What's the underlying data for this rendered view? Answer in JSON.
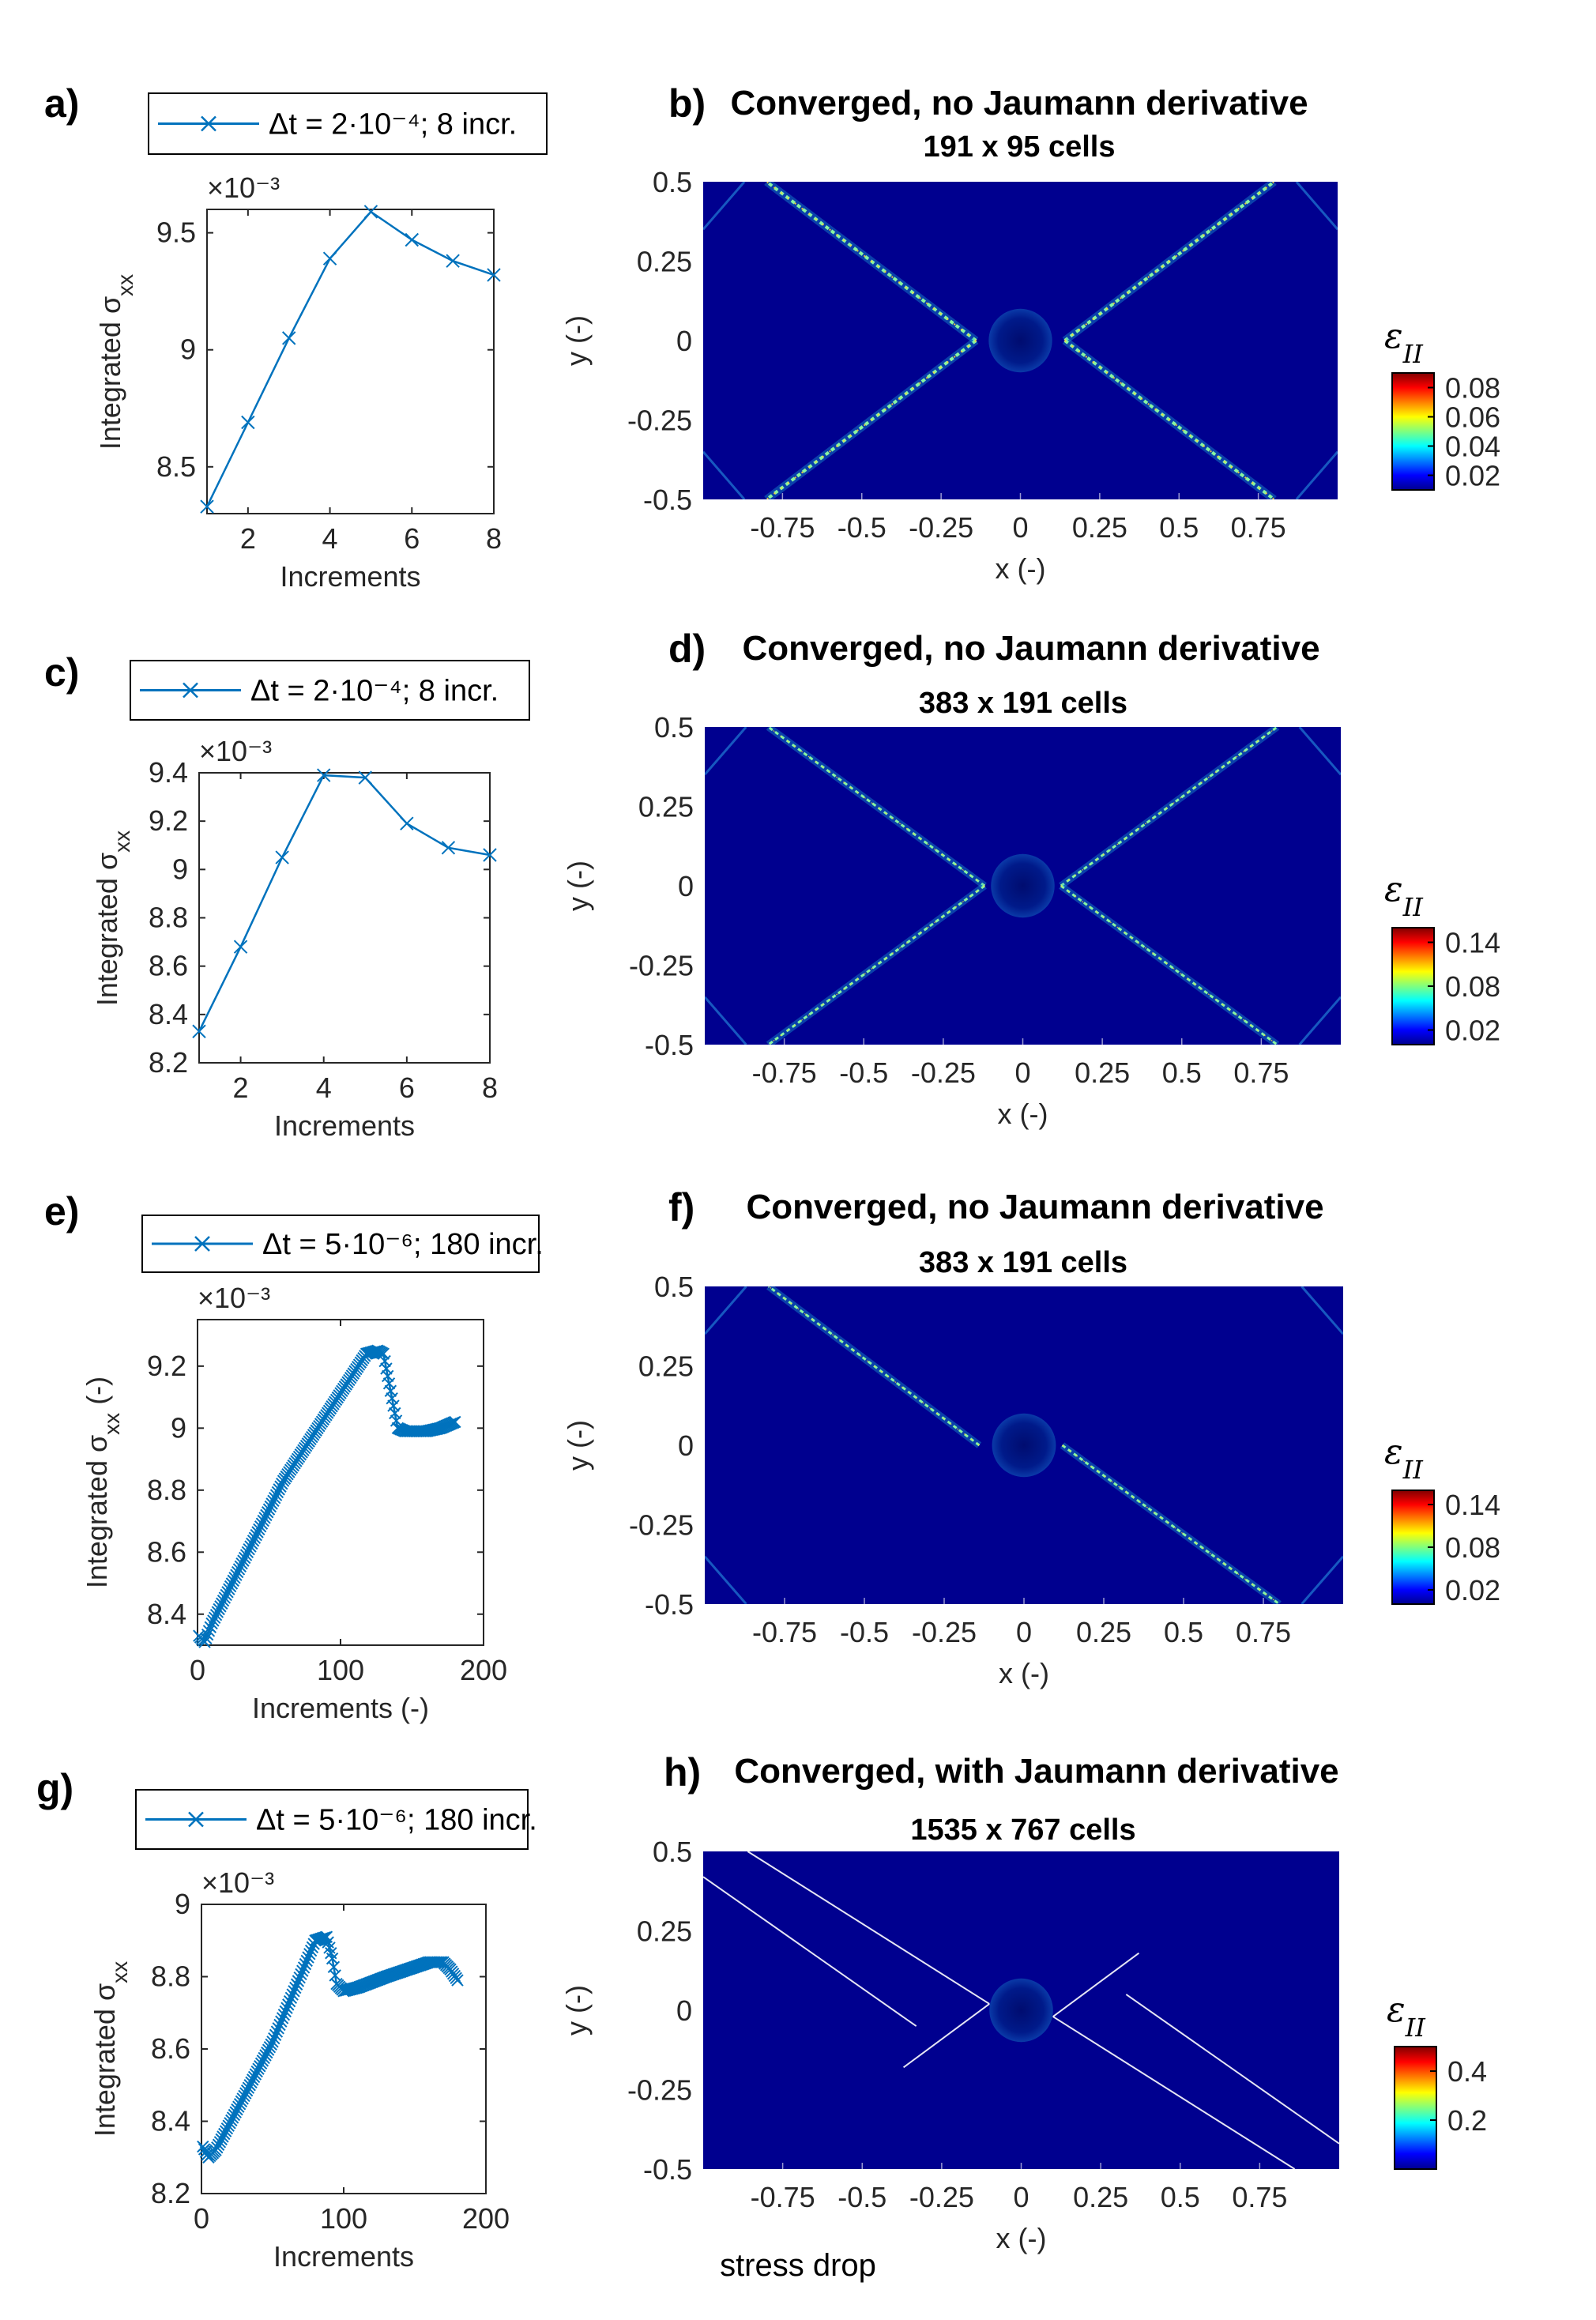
{
  "colors": {
    "line": "#0072BD",
    "field_bg": "#00008F",
    "axis": "#262626"
  },
  "footer_note": "stress drop",
  "panels": [
    {
      "letter": "a)",
      "legend": "Δt = 2·10⁻⁴; 8 incr.",
      "exponent": "×10⁻³",
      "ylabel": "Integrated σ_xx",
      "xlabel": "Increments"
    },
    {
      "letter": "c)",
      "legend": "Δt = 2·10⁻⁴; 8 incr.",
      "exponent": "×10⁻³",
      "ylabel": "Integrated σ_xx",
      "xlabel": "Increments"
    },
    {
      "letter": "e)",
      "legend": "Δt = 5·10⁻⁶; 180 incr.",
      "exponent": "×10⁻³",
      "ylabel": "Integrated σ_xx (-)",
      "xlabel": "Increments (-)"
    },
    {
      "letter": "g)",
      "legend": "Δt = 5·10⁻⁶; 180 incr.",
      "exponent": "×10⁻³",
      "ylabel": "Integrated σ_xx",
      "xlabel": "Increments"
    }
  ],
  "fields": [
    {
      "letter": "b)",
      "title": "Converged, no Jaumann derivative",
      "subtitle": "191 x 95 cells",
      "ylabel": "y (-)",
      "xlabel": "x (-)",
      "colorbar_label": "εII"
    },
    {
      "letter": "d)",
      "title": "Converged, no Jaumann derivative",
      "subtitle": "383 x 191 cells",
      "ylabel": "y (-)",
      "xlabel": "x (-)",
      "colorbar_label": "εII"
    },
    {
      "letter": "f)",
      "title": "Converged, no Jaumann derivative",
      "subtitle": "383 x 191 cells",
      "ylabel": "y (-)",
      "xlabel": "x (-)",
      "colorbar_label": "εII"
    },
    {
      "letter": "h)",
      "title": "Converged, with Jaumann derivative",
      "subtitle": "1535 x 767 cells",
      "ylabel": "y (-)",
      "xlabel": "x (-)",
      "colorbar_label": "εII"
    }
  ],
  "chart_data": [
    {
      "type": "line",
      "id": "a",
      "series": [
        {
          "name": "Δt = 2·10⁻⁴; 8 incr.",
          "marker": "x",
          "x": [
            1,
            2,
            3,
            4,
            5,
            6,
            7,
            8
          ],
          "values": [
            8.33,
            8.69,
            9.05,
            9.39,
            9.59,
            9.47,
            9.38,
            9.32
          ]
        }
      ],
      "xlim": [
        1,
        8
      ],
      "ylim": [
        8.3,
        9.6
      ],
      "xticks": [
        2,
        4,
        6,
        8
      ],
      "xtick_labels": [
        "2",
        "4",
        "6",
        "8"
      ],
      "yticks": [
        8.5,
        9,
        9.5
      ],
      "ytick_labels": [
        "8.5",
        "9",
        "9.5"
      ],
      "xlabel": "Increments",
      "ylabel": "Integrated σxx",
      "y_multiplier": "×10⁻³"
    },
    {
      "type": "line",
      "id": "c",
      "series": [
        {
          "name": "Δt = 2·10⁻⁴; 8 incr.",
          "marker": "x",
          "x": [
            1,
            2,
            3,
            4,
            5,
            6,
            7,
            8
          ],
          "values": [
            8.33,
            8.68,
            9.05,
            9.39,
            9.38,
            9.19,
            9.09,
            9.06
          ]
        }
      ],
      "xlim": [
        1,
        8
      ],
      "ylim": [
        8.2,
        9.4
      ],
      "xticks": [
        2,
        4,
        6,
        8
      ],
      "xtick_labels": [
        "2",
        "4",
        "6",
        "8"
      ],
      "yticks": [
        8.2,
        8.4,
        8.6,
        8.8,
        9,
        9.2,
        9.4
      ],
      "ytick_labels": [
        "8.2",
        "8.4",
        "8.6",
        "8.8",
        "9",
        "9.2",
        "9.4"
      ],
      "xlabel": "Increments",
      "ylabel": "Integrated σxx",
      "y_multiplier": "×10⁻³"
    },
    {
      "type": "line",
      "id": "e",
      "series": [
        {
          "name": "Δt = 5·10⁻⁶; 180 incr.",
          "marker": "x",
          "n_points": 180,
          "keypoints_x": [
            1,
            5,
            10,
            60,
            118,
            126,
            130,
            135,
            140,
            145,
            150,
            160,
            170,
            180
          ],
          "keypoints_y": [
            8.33,
            8.31,
            8.37,
            8.83,
            9.24,
            9.25,
            9.24,
            9.12,
            9.0,
            8.99,
            8.99,
            8.99,
            9.0,
            9.02
          ]
        }
      ],
      "xlim": [
        0,
        200
      ],
      "ylim": [
        8.3,
        9.35
      ],
      "xticks": [
        0,
        100,
        200
      ],
      "xtick_labels": [
        "0",
        "100",
        "200"
      ],
      "yticks": [
        8.4,
        8.6,
        8.8,
        9,
        9.2
      ],
      "ytick_labels": [
        "8.4",
        "8.6",
        "8.8",
        "9",
        "9.2"
      ],
      "xlabel": "Increments (-)",
      "ylabel": "Integrated σxx (-)",
      "y_multiplier": "×10⁻³"
    },
    {
      "type": "line",
      "id": "g",
      "series": [
        {
          "name": "Δt = 5·10⁻⁶; 180 incr.",
          "marker": "x",
          "n_points": 180,
          "keypoints_x": [
            1,
            5,
            10,
            50,
            80,
            88,
            92,
            95,
            100,
            110,
            130,
            160,
            170,
            175,
            180
          ],
          "keypoints_y": [
            8.33,
            8.3,
            8.32,
            8.62,
            8.9,
            8.91,
            8.85,
            8.78,
            8.76,
            8.77,
            8.8,
            8.84,
            8.84,
            8.82,
            8.79
          ]
        }
      ],
      "xlim": [
        0,
        200
      ],
      "ylim": [
        8.2,
        9.0
      ],
      "xticks": [
        0,
        100,
        200
      ],
      "xtick_labels": [
        "0",
        "100",
        "200"
      ],
      "yticks": [
        8.2,
        8.4,
        8.6,
        8.8,
        9
      ],
      "ytick_labels": [
        "8.2",
        "8.4",
        "8.6",
        "8.8",
        "9"
      ],
      "xlabel": "Increments",
      "ylabel": "Integrated σxx",
      "y_multiplier": "×10⁻³"
    },
    {
      "type": "heatmap",
      "id": "b",
      "title": "Converged, no Jaumann derivative",
      "subtitle": "191 x 95 cells",
      "xlim": [
        -1,
        1
      ],
      "ylim": [
        -0.5,
        0.5
      ],
      "xticks": [
        -0.75,
        -0.5,
        -0.25,
        0,
        0.25,
        0.5,
        0.75
      ],
      "xtick_labels": [
        "-0.75",
        "-0.5",
        "-0.25",
        "0",
        "0.25",
        "0.5",
        "0.75"
      ],
      "yticks": [
        0.5,
        0.25,
        0,
        -0.25,
        -0.5
      ],
      "ytick_labels": [
        "0.5",
        "0.25",
        "0",
        "-0.25",
        "-0.5"
      ],
      "xlabel": "x (-)",
      "ylabel": "y (-)",
      "colorbar": {
        "label": "εII",
        "ticks": [
          "0.08",
          "0.06",
          "0.04",
          "0.02"
        ],
        "values": [
          0.08,
          0.06,
          0.04,
          0.02
        ],
        "range": [
          0.01,
          0.09
        ]
      },
      "bands": [
        {
          "from": [
            -0.14,
            0
          ],
          "to": [
            -0.8,
            0.5
          ],
          "width": 4
        },
        {
          "from": [
            -0.14,
            0
          ],
          "to": [
            -0.8,
            -0.5
          ],
          "width": 4
        },
        {
          "from": [
            0.14,
            0
          ],
          "to": [
            0.8,
            0.5
          ],
          "width": 4
        },
        {
          "from": [
            0.14,
            0
          ],
          "to": [
            0.8,
            -0.5
          ],
          "width": 4
        }
      ]
    },
    {
      "type": "heatmap",
      "id": "d",
      "title": "Converged, no Jaumann derivative",
      "subtitle": "383 x 191 cells",
      "xlim": [
        -1,
        1
      ],
      "ylim": [
        -0.5,
        0.5
      ],
      "xticks": [
        -0.75,
        -0.5,
        -0.25,
        0,
        0.25,
        0.5,
        0.75
      ],
      "xtick_labels": [
        "-0.75",
        "-0.5",
        "-0.25",
        "0",
        "0.25",
        "0.5",
        "0.75"
      ],
      "yticks": [
        0.5,
        0.25,
        0,
        -0.25,
        -0.5
      ],
      "ytick_labels": [
        "0.5",
        "0.25",
        "0",
        "-0.25",
        "-0.5"
      ],
      "xlabel": "x (-)",
      "ylabel": "y (-)",
      "colorbar": {
        "label": "εII",
        "ticks": [
          "0.14",
          "0.08",
          "0.02"
        ],
        "values": [
          0.14,
          0.08,
          0.02
        ],
        "range": [
          0.0,
          0.16
        ]
      },
      "bands": [
        {
          "from": [
            -0.12,
            0
          ],
          "to": [
            -0.8,
            0.5
          ],
          "width": 3
        },
        {
          "from": [
            -0.12,
            0
          ],
          "to": [
            -0.8,
            -0.5
          ],
          "width": 3
        },
        {
          "from": [
            0.12,
            0
          ],
          "to": [
            0.8,
            0.5
          ],
          "width": 3
        },
        {
          "from": [
            0.12,
            0
          ],
          "to": [
            0.8,
            -0.5
          ],
          "width": 3
        }
      ]
    },
    {
      "type": "heatmap",
      "id": "f",
      "title": "Converged, no Jaumann derivative",
      "subtitle": "383 x 191 cells",
      "xlim": [
        -1,
        1
      ],
      "ylim": [
        -0.5,
        0.5
      ],
      "xticks": [
        -0.75,
        -0.5,
        -0.25,
        0,
        0.25,
        0.5,
        0.75
      ],
      "xtick_labels": [
        "-0.75",
        "-0.5",
        "-0.25",
        "0",
        "0.25",
        "0.5",
        "0.75"
      ],
      "yticks": [
        0.5,
        0.25,
        0,
        -0.25,
        -0.5
      ],
      "ytick_labels": [
        "0.5",
        "0.25",
        "0",
        "-0.25",
        "-0.5"
      ],
      "xlabel": "x (-)",
      "ylabel": "y (-)",
      "colorbar": {
        "label": "εII",
        "ticks": [
          "0.14",
          "0.08",
          "0.02"
        ],
        "values": [
          0.14,
          0.08,
          0.02
        ],
        "range": [
          0.0,
          0.16
        ]
      },
      "bands": [
        {
          "from": [
            -0.14,
            0.0
          ],
          "to": [
            -0.8,
            0.5
          ],
          "width": 3
        },
        {
          "from": [
            0.12,
            0.0
          ],
          "to": [
            0.8,
            -0.5
          ],
          "width": 3
        }
      ]
    },
    {
      "type": "heatmap",
      "id": "h",
      "title": "Converged, with Jaumann derivative",
      "subtitle": "1535 x 767 cells",
      "xlim": [
        -1,
        1
      ],
      "ylim": [
        -0.5,
        0.5
      ],
      "xticks": [
        -0.75,
        -0.5,
        -0.25,
        0,
        0.25,
        0.5,
        0.75
      ],
      "xtick_labels": [
        "-0.75",
        "-0.5",
        "-0.25",
        "0",
        "0.25",
        "0.5",
        "0.75"
      ],
      "yticks": [
        0.5,
        0.25,
        0,
        -0.25,
        -0.5
      ],
      "ytick_labels": [
        "0.5",
        "0.25",
        "0",
        "-0.25",
        "-0.5"
      ],
      "xlabel": "x (-)",
      "ylabel": "y (-)",
      "colorbar": {
        "label": "εII",
        "ticks": [
          "0.4",
          "0.2"
        ],
        "values": [
          0.4,
          0.2
        ],
        "range": [
          0.0,
          0.5
        ]
      },
      "bands": [
        {
          "from": [
            -1.0,
            0.42
          ],
          "to": [
            -0.33,
            -0.05
          ],
          "width": 2
        },
        {
          "from": [
            -0.86,
            0.5
          ],
          "to": [
            -0.1,
            0.02
          ],
          "width": 2
        },
        {
          "from": [
            -0.37,
            -0.18
          ],
          "to": [
            -0.1,
            0.02
          ],
          "width": 2
        },
        {
          "from": [
            1.0,
            -0.42
          ],
          "to": [
            0.33,
            0.05
          ],
          "width": 2
        },
        {
          "from": [
            0.86,
            -0.5
          ],
          "to": [
            0.1,
            -0.02
          ],
          "width": 2
        },
        {
          "from": [
            0.37,
            0.18
          ],
          "to": [
            0.1,
            -0.02
          ],
          "width": 2
        }
      ]
    }
  ]
}
